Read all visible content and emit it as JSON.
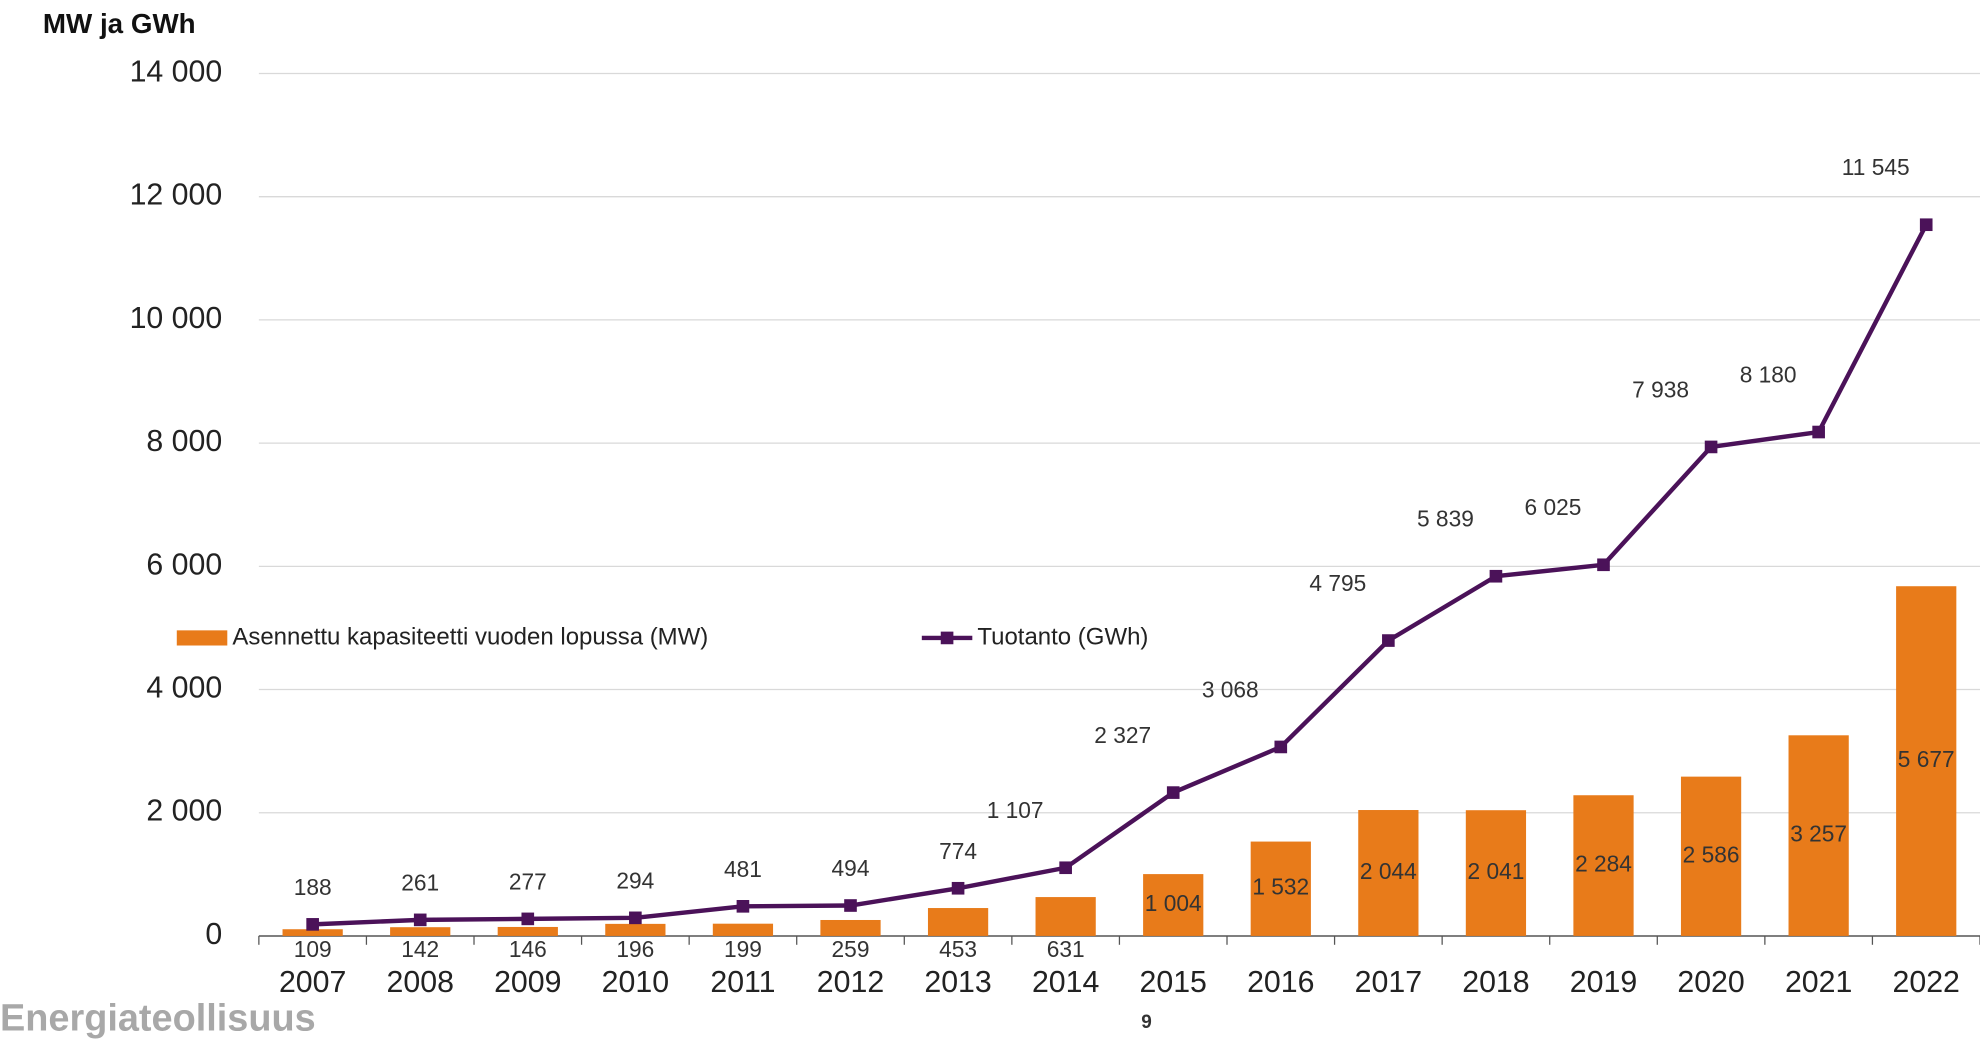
{
  "chart_data": {
    "type": "bar-line",
    "y_label": "MW ja GWh",
    "categories": [
      "2007",
      "2008",
      "2009",
      "2010",
      "2011",
      "2012",
      "2013",
      "2014",
      "2015",
      "2016",
      "2017",
      "2018",
      "2019",
      "2020",
      "2021",
      "2022"
    ],
    "series": [
      {
        "name": "Asennettu kapasiteetti vuoden lopussa (MW)",
        "type": "bar",
        "color": "#e87b1a",
        "values": [
          109,
          142,
          146,
          196,
          199,
          259,
          453,
          631,
          1004,
          1532,
          2044,
          2041,
          2284,
          2586,
          3257,
          5677
        ],
        "value_labels": [
          "109",
          "142",
          "146",
          "196",
          "199",
          "259",
          "453",
          "631",
          "1 004",
          "1 532",
          "2 044",
          "2 041",
          "2 284",
          "2 586",
          "3 257",
          "5 677"
        ]
      },
      {
        "name": "Tuotanto (GWh)",
        "type": "line",
        "color": "#4b1259",
        "values": [
          188,
          261,
          277,
          294,
          481,
          494,
          774,
          1107,
          2327,
          3068,
          4795,
          5839,
          6025,
          7938,
          8180,
          11545
        ],
        "value_labels": [
          "188",
          "261",
          "277",
          "294",
          "481",
          "494",
          "774",
          "1 107",
          "2 327",
          "3 068",
          "4 795",
          "5 839",
          "6 025",
          "7 938",
          "8 180",
          "11 545"
        ]
      }
    ],
    "ylim": [
      0,
      14000
    ],
    "yticks": [
      0,
      {
        "value": 2000,
        "label": "2 000"
      },
      {
        "value": 4000,
        "label": "4 000"
      },
      {
        "value": 6000,
        "label": "6 000"
      },
      {
        "value": 8000,
        "label": "8 000"
      },
      {
        "value": 10000,
        "label": "10 000"
      },
      {
        "value": 12000,
        "label": "12 000"
      },
      {
        "value": 14000,
        "label": "14 000"
      }
    ],
    "grid": true,
    "legend": "middle-left"
  },
  "footer": {
    "brand": "Energiateollisuus",
    "page": "9"
  }
}
